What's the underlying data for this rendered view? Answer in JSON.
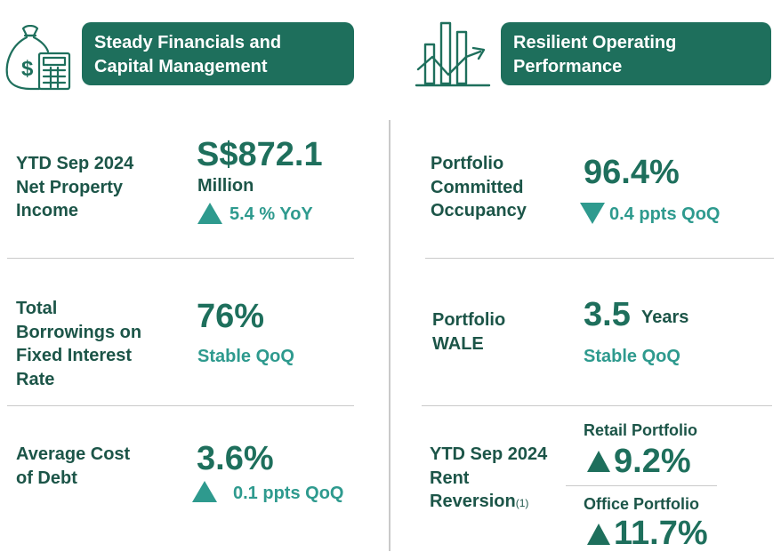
{
  "left_section": {
    "banner": [
      "Steady Financials and",
      "Capital Management"
    ],
    "npi": {
      "label": [
        "YTD Sep 2024",
        "Net Property",
        "Income"
      ],
      "value": "S$872.1",
      "unit": "Million",
      "change": "5.4 % YoY"
    },
    "fixed_rate": {
      "label": [
        "Total",
        "Borrowings on",
        "Fixed Interest",
        "Rate"
      ],
      "value": "76%",
      "change": "Stable QoQ"
    },
    "cost_of_debt": {
      "label": [
        "Average Cost",
        "of Debt"
      ],
      "value": "3.6%",
      "change": "0.1 ppts QoQ"
    }
  },
  "right_section": {
    "banner": [
      "Resilient Operating",
      "Performance"
    ],
    "occupancy": {
      "label": [
        "Portfolio",
        "Committed",
        "Occupancy"
      ],
      "value": "96.4%",
      "change": "0.4 ppts QoQ"
    },
    "wale": {
      "label": [
        "Portfolio",
        "WALE"
      ],
      "value": "3.5",
      "unit": "Years",
      "change": "Stable QoQ"
    },
    "rent_reversion": {
      "label": [
        "YTD Sep 2024",
        "Rent",
        "Reversion"
      ],
      "footnote": "(1)",
      "retail_label": "Retail Portfolio",
      "retail_value": "9.2%",
      "office_label": "Office Portfolio",
      "office_value": "11.7%"
    }
  },
  "icons": {
    "left": "money-bag-calculator-icon",
    "right": "bar-chart-growth-icon"
  },
  "colors": {
    "primary": "#1e6f5c",
    "accent": "#2e9a8e",
    "text": "#1c5548"
  }
}
